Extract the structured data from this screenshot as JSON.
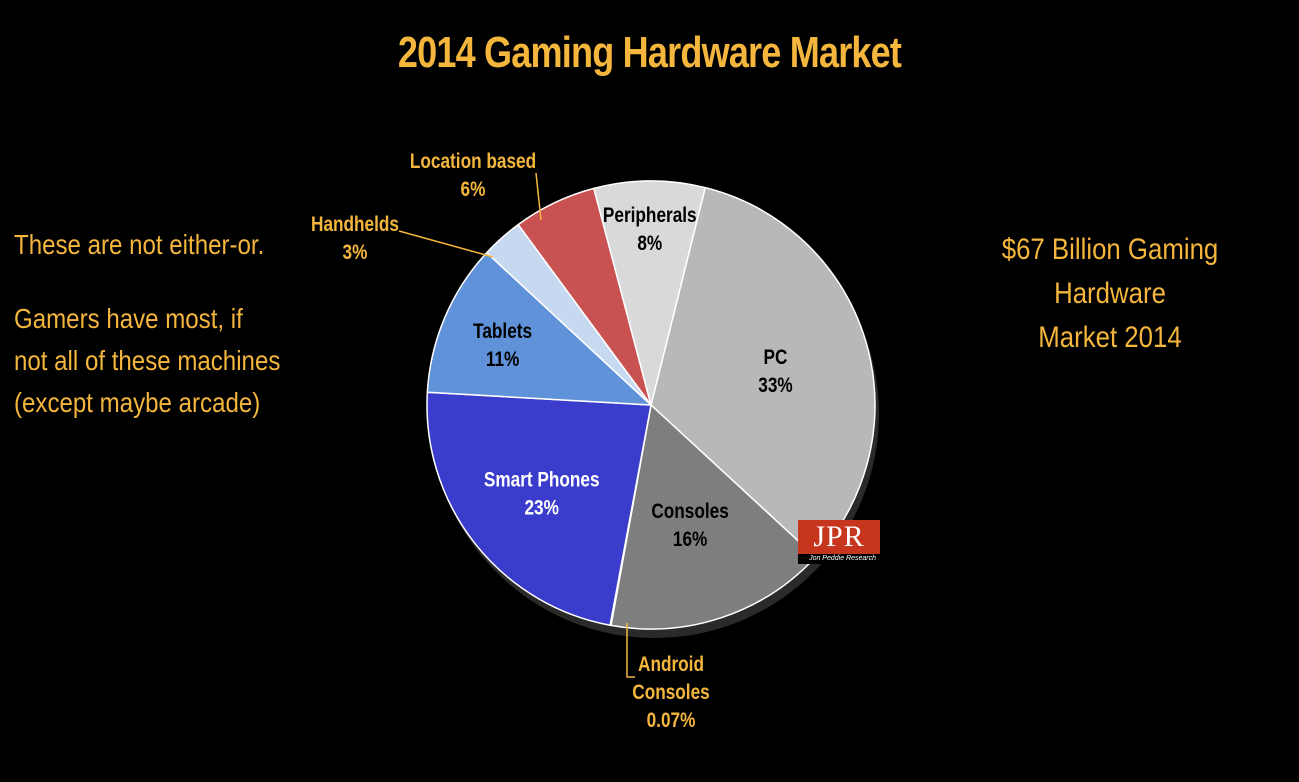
{
  "page": {
    "title": "2014 Gaming Hardware Market",
    "left_notes": [
      "These are not either-or.",
      "Gamers have most, if not all of these machines (except maybe arcade)"
    ],
    "left_notes_lines": [
      [
        "These are not either-or."
      ],
      [
        "Gamers have most, if",
        "not all of these machines",
        "(except maybe arcade)"
      ]
    ],
    "right_note_lines": [
      "$67 Billion Gaming Hardware",
      "Market 2014"
    ],
    "logo": {
      "mark": "JPR",
      "sub": "Jon Peddie Research"
    }
  },
  "colors": {
    "text_accent": "#F4B63C",
    "background": "#000000"
  },
  "chart_data": {
    "type": "pie",
    "title": "2014 Gaming Hardware Market",
    "start_angle_deg": 14,
    "slices": [
      {
        "name": "PC",
        "value": 33,
        "label": "33%",
        "color": "#B8B8B8",
        "label_color": "#000000"
      },
      {
        "name": "Consoles",
        "value": 16,
        "label": "16%",
        "color": "#7E7E7E",
        "label_color": "#000000"
      },
      {
        "name": "Android Consoles",
        "value": 0.07,
        "label": "0.07%",
        "color": "#C9C9C9",
        "label_color": "#F4B63C"
      },
      {
        "name": "Smart Phones",
        "value": 23,
        "label": "23%",
        "color": "#3A3DCB",
        "label_color": "#FFFFFF"
      },
      {
        "name": "Tablets",
        "value": 11,
        "label": "11%",
        "color": "#5F92D9",
        "label_color": "#000000"
      },
      {
        "name": "Handhelds",
        "value": 3,
        "label": "3%",
        "color": "#C7D9F0",
        "label_color": "#F4B63C"
      },
      {
        "name": "Location based",
        "value": 6,
        "label": "6%",
        "color": "#C85252",
        "label_color": "#F4B63C"
      },
      {
        "name": "Peripherals",
        "value": 8,
        "label": "8%",
        "color": "#D9D9D9",
        "label_color": "#000000"
      }
    ]
  }
}
